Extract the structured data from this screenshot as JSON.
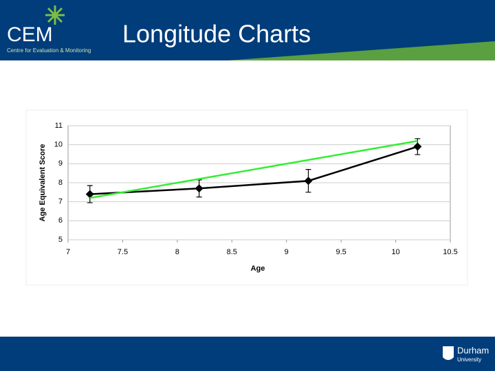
{
  "header": {
    "logo": "CEM",
    "logo_subtitle": "Centre for Evaluation & Monitoring",
    "title": "Longitude Charts"
  },
  "footer": {
    "logo": "Durham",
    "logo_subtitle": "University"
  },
  "chart_data": {
    "type": "line",
    "x_label": "Age",
    "y_label": "Age Equivalent Score",
    "series": [
      {
        "color": "#000000",
        "marker": "diamond",
        "x": [
          7.2,
          8.2,
          9.2,
          10.2
        ],
        "values": [
          7.4,
          7.7,
          8.1,
          9.9
        ],
        "errors": [
          0.45,
          0.45,
          0.6,
          0.42
        ]
      },
      {
        "color": "#33ee33",
        "x": [
          7.2,
          10.2
        ],
        "values": [
          7.2,
          10.2
        ]
      }
    ],
    "xlim": [
      7,
      10.5
    ],
    "xticks": [
      7,
      7.5,
      8,
      8.5,
      9,
      9.5,
      10,
      10.5
    ],
    "ylim": [
      5,
      11
    ],
    "yticks": [
      5,
      6,
      7,
      8,
      9,
      10,
      11
    ],
    "grid": true
  }
}
